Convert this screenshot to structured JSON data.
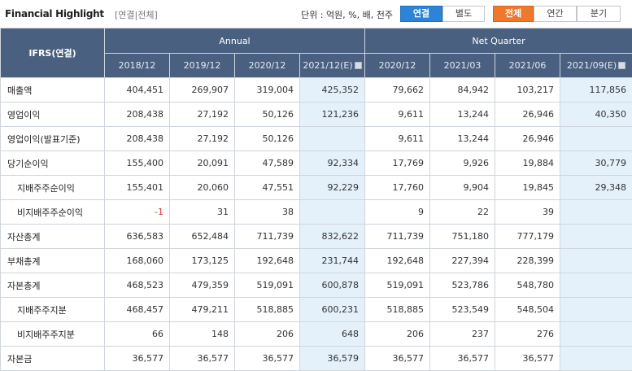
{
  "header": {
    "title": "Financial Highlight",
    "subtitle": "[연결|전체]",
    "unit": "단위 : 억원, %, 배, 천주"
  },
  "buttons": {
    "consolidated": "연결",
    "separate": "별도",
    "all": "전체",
    "annual": "연간",
    "quarter": "분기"
  },
  "table": {
    "corner": "IFRS(연결)",
    "group_annual": "Annual",
    "group_quarter": "Net Quarter",
    "periods": [
      "2018/12",
      "2019/12",
      "2020/12",
      "2021/12(E)",
      "2020/12",
      "2021/03",
      "2021/06",
      "2021/09(E)"
    ],
    "rows": [
      {
        "label": "매출액",
        "values": [
          "404,451",
          "269,907",
          "319,004",
          "425,352",
          "79,662",
          "84,942",
          "103,217",
          "117,856"
        ]
      },
      {
        "label": "영업이익",
        "values": [
          "208,438",
          "27,192",
          "50,126",
          "121,236",
          "9,611",
          "13,244",
          "26,946",
          "40,350"
        ]
      },
      {
        "label": "영업이익(발표기준)",
        "values": [
          "208,438",
          "27,192",
          "50,126",
          "",
          "9,611",
          "13,244",
          "26,946",
          ""
        ]
      },
      {
        "label": "당기순이익",
        "values": [
          "155,400",
          "20,091",
          "47,589",
          "92,334",
          "17,769",
          "9,926",
          "19,884",
          "30,779"
        ]
      },
      {
        "label": "지배주주순이익",
        "values": [
          "155,401",
          "20,060",
          "47,551",
          "92,229",
          "17,760",
          "9,904",
          "19,845",
          "29,348"
        ]
      },
      {
        "label": "비지배주주순이익",
        "values": [
          "-1",
          "31",
          "38",
          "",
          "9",
          "22",
          "39",
          ""
        ]
      },
      {
        "label": "자산총계",
        "values": [
          "636,583",
          "652,484",
          "711,739",
          "832,622",
          "711,739",
          "751,180",
          "777,179",
          ""
        ]
      },
      {
        "label": "부채총계",
        "values": [
          "168,060",
          "173,125",
          "192,648",
          "231,744",
          "192,648",
          "227,394",
          "228,399",
          ""
        ]
      },
      {
        "label": "자본총계",
        "values": [
          "468,523",
          "479,359",
          "519,091",
          "600,878",
          "519,091",
          "523,786",
          "548,780",
          ""
        ]
      },
      {
        "label": "지배주주지분",
        "values": [
          "468,457",
          "479,211",
          "518,885",
          "600,231",
          "518,885",
          "523,549",
          "548,504",
          ""
        ]
      },
      {
        "label": "비지배주주지분",
        "values": [
          "66",
          "148",
          "206",
          "648",
          "206",
          "237",
          "276",
          ""
        ]
      },
      {
        "label": "자본금",
        "values": [
          "36,577",
          "36,577",
          "36,577",
          "36,579",
          "36,577",
          "36,577",
          "36,577",
          ""
        ]
      }
    ]
  }
}
